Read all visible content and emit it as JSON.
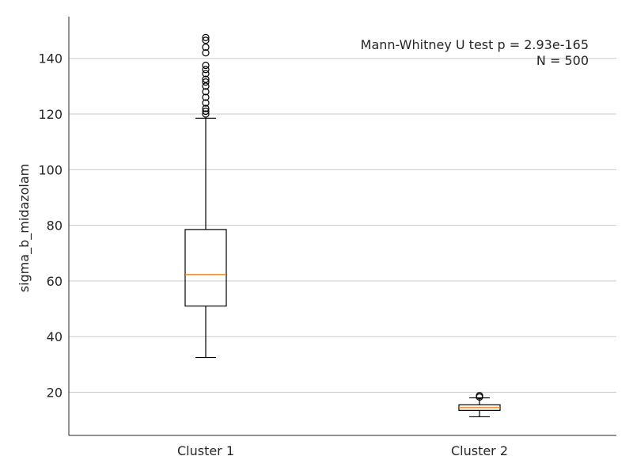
{
  "chart_data": {
    "type": "boxplot",
    "categories": [
      "Cluster 1",
      "Cluster 2"
    ],
    "ylabel": "sigma_b_midazolam",
    "xlabel": "",
    "ylim": [
      4.5,
      155
    ],
    "yticks": [
      20,
      40,
      60,
      80,
      100,
      120,
      140
    ],
    "grid": "horizontal",
    "annotation_lines": [
      "Mann-Whitney U test p = 2.93e-165",
      "N = 500"
    ],
    "annotation_position": "top-right",
    "colors": {
      "median": "#ff7f0e",
      "box": "#000000",
      "grid": "#cccccc"
    },
    "boxes": [
      {
        "name": "Cluster 1",
        "whisker_low": 32.5,
        "q1": 51.0,
        "median": 62.3,
        "q3": 78.5,
        "whisker_high": 118.5,
        "outliers": [
          120.0,
          121.0,
          122.0,
          124.0,
          126.0,
          128.0,
          130.0,
          131.5,
          132.5,
          134.5,
          136.0,
          137.5,
          142.0,
          144.0,
          146.5,
          147.5
        ]
      },
      {
        "name": "Cluster 2",
        "whisker_low": 11.2,
        "q1": 13.5,
        "median": 14.5,
        "q3": 15.5,
        "whisker_high": 18.0,
        "outliers": [
          18.3,
          18.8
        ]
      }
    ]
  }
}
